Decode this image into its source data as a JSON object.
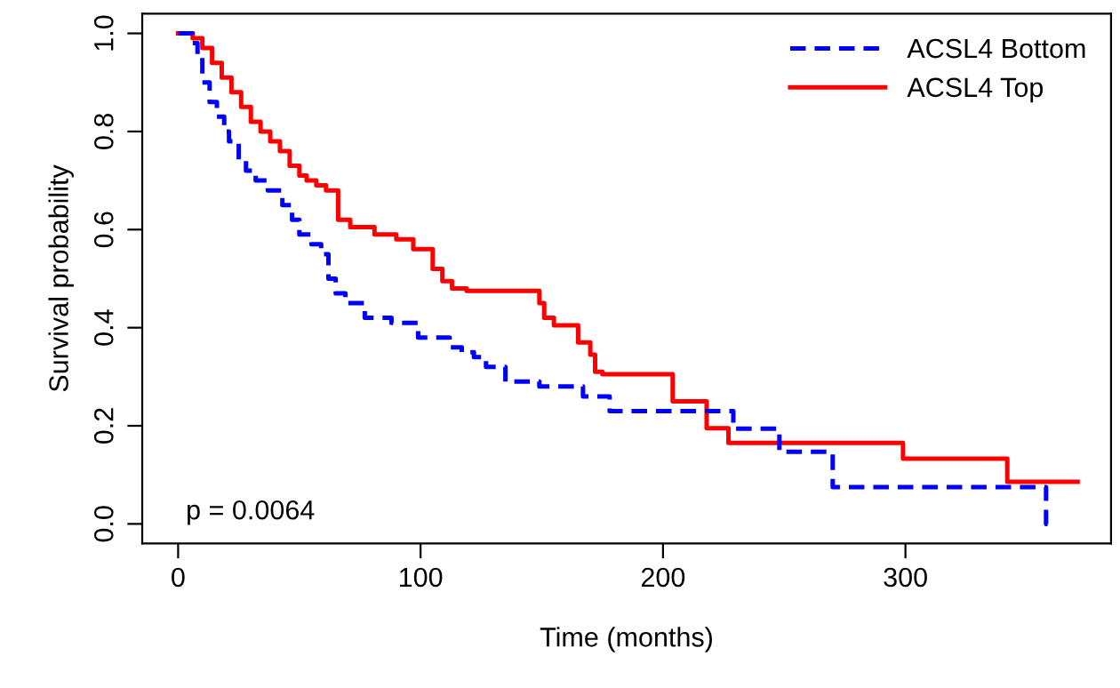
{
  "chart_data": {
    "type": "step",
    "xlabel": "Time (months)",
    "ylabel": "Survival probability",
    "xlim": [
      -14.8,
      384.8
    ],
    "ylim": [
      -0.04,
      1.04
    ],
    "xticks": [
      0,
      100,
      200,
      300
    ],
    "yticks": [
      {
        "value": 0,
        "label": "0.0"
      },
      {
        "value": 0.2,
        "label": "0.2"
      },
      {
        "value": 0.4,
        "label": "0.4"
      },
      {
        "value": 0.6,
        "label": "0.6"
      },
      {
        "value": 0.8,
        "label": "0.8"
      },
      {
        "value": 1,
        "label": "1.0"
      }
    ],
    "grid": false,
    "legend": "top right",
    "marker": "none",
    "annotations": [
      "p = 0.0064"
    ],
    "series": [
      {
        "name": "ACSL4 Bottom",
        "color": "#0000ff",
        "line_style": "dashed",
        "x": [
          0,
          6,
          8,
          10,
          13,
          16,
          19,
          21,
          25,
          28,
          32,
          37,
          43,
          47,
          50,
          55,
          59,
          62,
          65,
          69,
          77,
          88,
          99,
          105,
          112,
          117,
          122,
          127,
          135,
          149,
          167,
          178,
          229,
          248,
          270,
          358,
          359
        ],
        "values": [
          1.0,
          0.98,
          0.95,
          0.9,
          0.86,
          0.83,
          0.8,
          0.78,
          0.74,
          0.72,
          0.7,
          0.68,
          0.65,
          0.62,
          0.59,
          0.57,
          0.55,
          0.5,
          0.47,
          0.45,
          0.42,
          0.41,
          0.38,
          0.38,
          0.36,
          0.35,
          0.34,
          0.32,
          0.29,
          0.28,
          0.26,
          0.23,
          0.194,
          0.147,
          0.075,
          0.0,
          0.0
        ]
      },
      {
        "name": "ACSL4 Top",
        "color": "#ff0000",
        "line_style": "solid",
        "x": [
          0,
          6,
          10,
          14,
          18,
          22,
          26,
          30,
          34,
          38,
          42,
          46,
          50,
          53,
          57,
          61,
          66,
          71,
          81,
          90,
          97,
          105,
          109,
          113,
          119,
          149,
          151,
          155,
          165,
          170,
          172,
          175,
          204,
          218,
          227,
          299,
          342,
          371
        ],
        "values": [
          1.0,
          0.99,
          0.97,
          0.94,
          0.91,
          0.88,
          0.85,
          0.82,
          0.8,
          0.78,
          0.76,
          0.73,
          0.71,
          0.7,
          0.69,
          0.68,
          0.62,
          0.605,
          0.59,
          0.58,
          0.56,
          0.52,
          0.495,
          0.48,
          0.475,
          0.45,
          0.42,
          0.405,
          0.37,
          0.345,
          0.31,
          0.305,
          0.25,
          0.195,
          0.165,
          0.133,
          0.086,
          0.086
        ]
      }
    ]
  }
}
